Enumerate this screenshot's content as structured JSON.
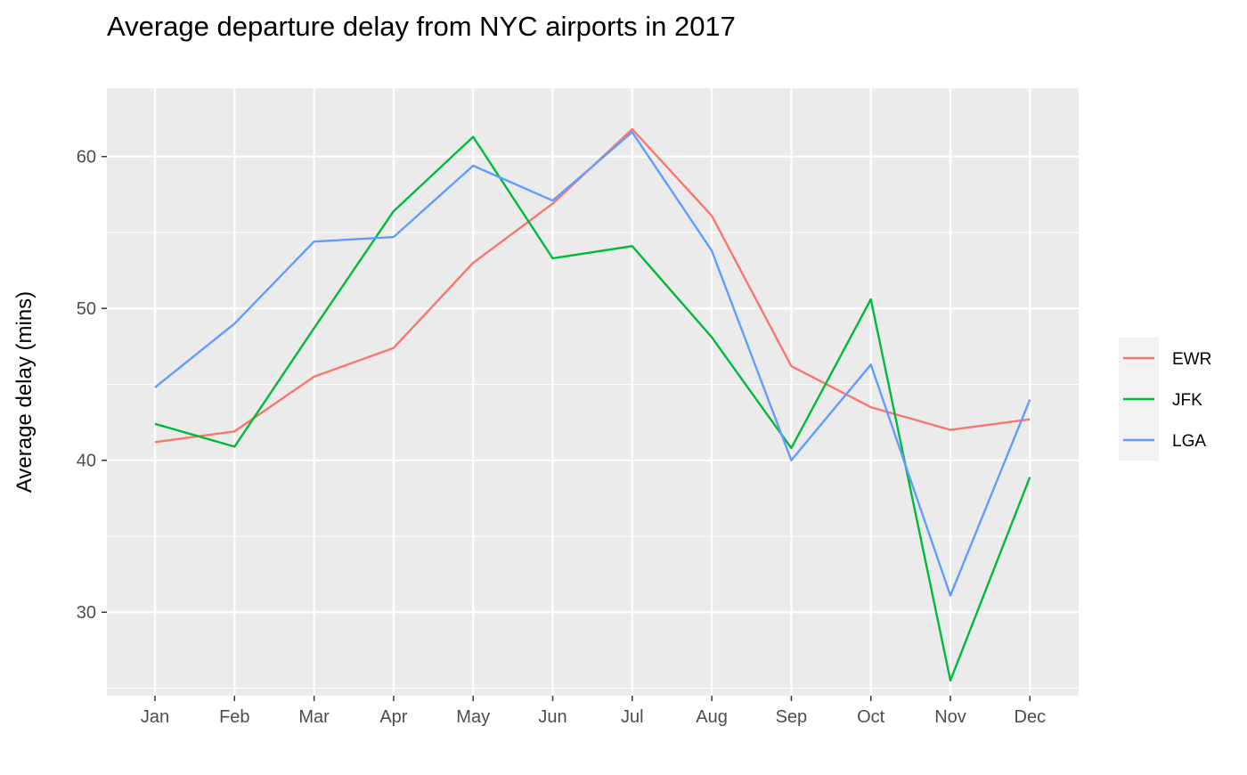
{
  "chart_data": {
    "type": "line",
    "title": "Average departure delay from NYC airports in 2017",
    "xlabel": "",
    "ylabel": "Average delay (mins)",
    "categories": [
      "Jan",
      "Feb",
      "Mar",
      "Apr",
      "May",
      "Jun",
      "Jul",
      "Aug",
      "Sep",
      "Oct",
      "Nov",
      "Dec"
    ],
    "ylim": [
      24.5,
      64.5
    ],
    "yticks": [
      30,
      40,
      50,
      60
    ],
    "grid": true,
    "legend_position": "right",
    "series": [
      {
        "name": "EWR",
        "color": "#F8766D",
        "values": [
          41.2,
          41.9,
          45.5,
          47.4,
          53.0,
          56.9,
          61.8,
          56.1,
          46.2,
          43.5,
          42.0,
          42.7
        ]
      },
      {
        "name": "JFK",
        "color": "#00BA38",
        "values": [
          42.4,
          40.9,
          48.7,
          56.4,
          61.3,
          53.3,
          54.1,
          48.1,
          40.8,
          50.6,
          25.5,
          38.9
        ]
      },
      {
        "name": "LGA",
        "color": "#619CFF",
        "values": [
          44.8,
          49.0,
          54.4,
          54.7,
          59.4,
          57.1,
          61.6,
          53.8,
          40.0,
          46.3,
          31.1,
          44.0
        ]
      }
    ]
  }
}
